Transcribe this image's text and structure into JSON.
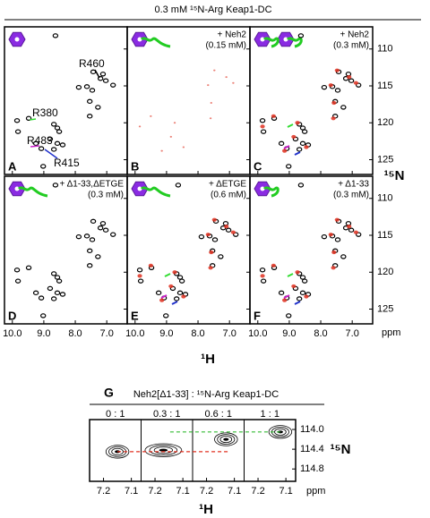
{
  "title": "0.3 mM ¹⁵N-Arg Keap1-DC",
  "axes": {
    "y_label": "¹⁵N",
    "x_label": "¹H",
    "unit": "ppm",
    "xlim": [
      10.25,
      6.35
    ],
    "ylim": [
      107,
      127
    ],
    "xticks": [
      {
        "value": 10,
        "label": "10.0"
      },
      {
        "value": 9,
        "label": "9.0"
      },
      {
        "value": 8,
        "label": "8.0"
      },
      {
        "value": 7,
        "label": "7.0"
      }
    ],
    "yticks": [
      110,
      115,
      120,
      125
    ]
  },
  "panels": [
    {
      "letter": "A",
      "legend": [],
      "show_free": true,
      "show_bound": false
    },
    {
      "letter": "B",
      "legend": [
        "+ Neh2",
        "(0.15 mM)"
      ],
      "show_free": false,
      "show_bound": true
    },
    {
      "letter": "C",
      "legend": [
        "+ Neh2",
        "(0.3 mM)"
      ],
      "show_free": true,
      "show_bound": true
    },
    {
      "letter": "D",
      "legend": [
        "+ Δ1-33,ΔETGE",
        "(0.3 mM)"
      ],
      "show_free": true,
      "show_bound": false
    },
    {
      "letter": "E",
      "legend": [
        "+ ΔETGE",
        "(0.6 mM)"
      ],
      "show_free": true,
      "show_bound": true
    },
    {
      "letter": "F",
      "legend": [
        "+ Δ1-33",
        "(0.3 mM)"
      ],
      "show_free": true,
      "show_bound": true
    }
  ],
  "annotations": [
    {
      "text": "R460",
      "color": "#000000"
    },
    {
      "text": "R380",
      "color": "#33dd33"
    },
    {
      "text": "R483",
      "color": "#cc22cc"
    },
    {
      "text": "R415",
      "color": "#2233cc"
    }
  ],
  "peaks": {
    "free_color": "#000000",
    "bound_color": "#e03020",
    "free": [
      [
        8.63,
        108.2
      ],
      [
        7.43,
        113.1
      ],
      [
        7.2,
        114.0
      ],
      [
        7.03,
        114.3
      ],
      [
        6.8,
        114.9
      ],
      [
        7.63,
        115.1
      ],
      [
        7.46,
        115.6
      ],
      [
        7.89,
        115.2
      ],
      [
        7.12,
        113.4
      ],
      [
        7.54,
        117.1
      ],
      [
        7.28,
        117.9
      ],
      [
        7.54,
        119.1
      ],
      [
        9.85,
        119.7
      ],
      [
        9.48,
        119.4
      ],
      [
        8.68,
        120.2
      ],
      [
        8.57,
        120.7
      ],
      [
        9.82,
        121.2
      ],
      [
        8.51,
        121.2
      ],
      [
        8.8,
        122.2
      ],
      [
        8.57,
        122.8
      ],
      [
        8.4,
        123.0
      ],
      [
        9.25,
        122.8
      ],
      [
        9.08,
        123.5
      ],
      [
        8.68,
        123.6
      ],
      [
        9.02,
        125.9
      ]
    ],
    "bound": [
      [
        7.48,
        112.9
      ],
      [
        7.1,
        113.8
      ],
      [
        6.88,
        114.6
      ],
      [
        7.68,
        114.9
      ],
      [
        7.58,
        117.3
      ],
      [
        7.6,
        119.4
      ],
      [
        9.5,
        119.1
      ],
      [
        8.74,
        120.0
      ],
      [
        9.85,
        120.5
      ],
      [
        8.86,
        121.9
      ],
      [
        8.46,
        123.3
      ],
      [
        9.15,
        123.8
      ]
    ]
  },
  "titration": {
    "letter": "G",
    "title": "Neh2[Δ1-33] : ¹⁵N-Arg Keap1-DC",
    "ratios": [
      "0 : 1",
      "0.3 : 1",
      "0.6 : 1",
      "1 : 1"
    ],
    "xlim": [
      7.25,
      7.065
    ],
    "ylim": [
      113.8,
      115.05
    ],
    "xticks": [
      7.2,
      7.1
    ],
    "yticks": [
      {
        "value": 114,
        "label": "114.0"
      },
      114.4,
      114.8
    ],
    "peaks": [
      [
        7.15,
        114.45
      ],
      [
        7.17,
        114.42
      ],
      [
        7.13,
        114.2
      ],
      [
        7.12,
        114.05
      ]
    ],
    "y_label": "¹⁵N",
    "x_label": "¹H",
    "unit": "ppm"
  }
}
